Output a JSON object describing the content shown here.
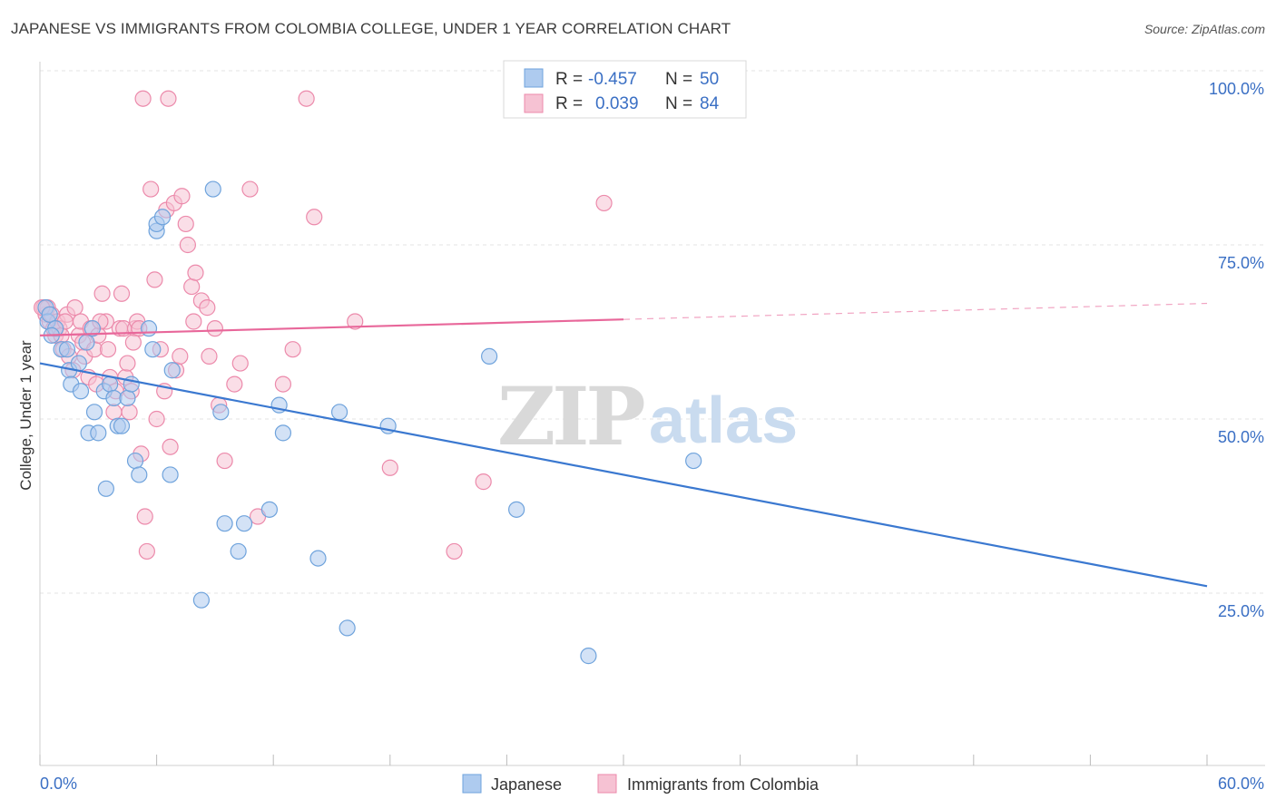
{
  "title": "JAPANESE VS IMMIGRANTS FROM COLOMBIA COLLEGE, UNDER 1 YEAR CORRELATION CHART",
  "source": "Source: ZipAtlas.com",
  "watermark": {
    "zip": "ZIP",
    "atlas": "atlas"
  },
  "colors": {
    "blue": "#6fa3dc",
    "blue_fill": "#aecbef",
    "pink": "#ec8aab",
    "pink_fill": "#f6c2d3",
    "blue_line": "#3a78d0",
    "pink_line": "#e8679a",
    "tick": "#3a6fc4"
  },
  "legend": {
    "rows": [
      {
        "r_label": "R = ",
        "r_value": "-0.457",
        "n_label": "N = ",
        "n_value": "50"
      },
      {
        "r_label": "R = ",
        "r_value": "0.039",
        "n_label": "N = ",
        "n_value": "84"
      }
    ]
  },
  "bottom_legend": [
    "Japanese",
    "Immigrants from Colombia"
  ],
  "chart_data": {
    "type": "scatter",
    "title": "JAPANESE VS IMMIGRANTS FROM COLOMBIA COLLEGE, UNDER 1 YEAR CORRELATION CHART",
    "xlabel": "",
    "ylabel": "College, Under 1 year",
    "xlim": [
      0,
      60
    ],
    "ylim": [
      0,
      105
    ],
    "x_tick_labels": [
      "0.0%",
      "60.0%"
    ],
    "y_ticks": [
      25,
      50,
      75,
      100
    ],
    "y_tick_labels": [
      "25.0%",
      "50.0%",
      "75.0%",
      "100.0%"
    ],
    "grid": true,
    "legend_position": "top-center",
    "series": [
      {
        "name": "Japanese",
        "r": -0.457,
        "n": 50,
        "trend": {
          "x0": 0,
          "y0": 58,
          "x1": 60,
          "y1": 26
        },
        "points": [
          [
            0.3,
            66
          ],
          [
            0.4,
            64
          ],
          [
            0.5,
            65
          ],
          [
            0.8,
            63
          ],
          [
            1.1,
            60
          ],
          [
            1.4,
            60
          ],
          [
            1.5,
            57
          ],
          [
            1.6,
            55
          ],
          [
            2.0,
            58
          ],
          [
            2.1,
            54
          ],
          [
            2.4,
            61
          ],
          [
            2.5,
            48
          ],
          [
            2.7,
            63
          ],
          [
            2.8,
            51
          ],
          [
            3.0,
            48
          ],
          [
            3.3,
            54
          ],
          [
            3.4,
            40
          ],
          [
            3.6,
            55
          ],
          [
            3.8,
            53
          ],
          [
            4.0,
            49
          ],
          [
            4.2,
            49
          ],
          [
            4.5,
            53
          ],
          [
            4.7,
            55
          ],
          [
            4.9,
            44
          ],
          [
            5.1,
            42
          ],
          [
            5.6,
            63
          ],
          [
            5.8,
            60
          ],
          [
            6.0,
            77
          ],
          [
            6.0,
            78
          ],
          [
            6.3,
            79
          ],
          [
            6.7,
            42
          ],
          [
            6.8,
            57
          ],
          [
            8.3,
            24
          ],
          [
            8.9,
            83
          ],
          [
            9.3,
            51
          ],
          [
            9.5,
            35
          ],
          [
            10.2,
            31
          ],
          [
            10.5,
            35
          ],
          [
            11.8,
            37
          ],
          [
            12.3,
            52
          ],
          [
            12.5,
            48
          ],
          [
            14.3,
            30
          ],
          [
            15.4,
            51
          ],
          [
            15.8,
            20
          ],
          [
            17.9,
            49
          ],
          [
            23.1,
            59
          ],
          [
            24.5,
            37
          ],
          [
            28.2,
            16
          ],
          [
            33.6,
            44
          ],
          [
            0.6,
            62
          ]
        ]
      },
      {
        "name": "Immigrants from Colombia",
        "r": 0.039,
        "n": 84,
        "trend": {
          "x0": 0,
          "y0": 62,
          "x1": 30,
          "y1": 64.3,
          "dashed_to": {
            "x": 60,
            "y": 66.6
          }
        },
        "points": [
          [
            0.2,
            66
          ],
          [
            0.3,
            65
          ],
          [
            0.4,
            66
          ],
          [
            0.5,
            64
          ],
          [
            0.6,
            65
          ],
          [
            0.7,
            63
          ],
          [
            0.8,
            62
          ],
          [
            0.9,
            64
          ],
          [
            1.0,
            63
          ],
          [
            1.1,
            62
          ],
          [
            1.2,
            60
          ],
          [
            1.4,
            65
          ],
          [
            1.5,
            59
          ],
          [
            1.7,
            57
          ],
          [
            1.8,
            66
          ],
          [
            2.0,
            62
          ],
          [
            2.1,
            64
          ],
          [
            2.2,
            61
          ],
          [
            2.3,
            59
          ],
          [
            2.5,
            56
          ],
          [
            2.6,
            63
          ],
          [
            2.8,
            60
          ],
          [
            2.9,
            55
          ],
          [
            3.0,
            62
          ],
          [
            3.2,
            68
          ],
          [
            3.4,
            64
          ],
          [
            3.5,
            60
          ],
          [
            3.6,
            56
          ],
          [
            3.8,
            51
          ],
          [
            3.9,
            54
          ],
          [
            4.1,
            63
          ],
          [
            4.2,
            68
          ],
          [
            4.3,
            63
          ],
          [
            4.4,
            56
          ],
          [
            4.5,
            58
          ],
          [
            4.6,
            51
          ],
          [
            4.7,
            54
          ],
          [
            4.9,
            63
          ],
          [
            5.0,
            64
          ],
          [
            5.1,
            63
          ],
          [
            5.2,
            45
          ],
          [
            5.4,
            36
          ],
          [
            5.5,
            31
          ],
          [
            5.7,
            83
          ],
          [
            5.9,
            70
          ],
          [
            6.0,
            50
          ],
          [
            6.2,
            60
          ],
          [
            6.4,
            54
          ],
          [
            6.5,
            80
          ],
          [
            6.7,
            46
          ],
          [
            6.9,
            81
          ],
          [
            7.0,
            57
          ],
          [
            7.3,
            82
          ],
          [
            7.5,
            78
          ],
          [
            7.6,
            75
          ],
          [
            7.8,
            69
          ],
          [
            7.9,
            64
          ],
          [
            8.0,
            71
          ],
          [
            8.3,
            67
          ],
          [
            8.6,
            66
          ],
          [
            8.7,
            59
          ],
          [
            9.0,
            63
          ],
          [
            9.2,
            52
          ],
          [
            9.5,
            44
          ],
          [
            10.0,
            55
          ],
          [
            10.3,
            58
          ],
          [
            10.8,
            83
          ],
          [
            11.2,
            36
          ],
          [
            12.5,
            55
          ],
          [
            13.0,
            60
          ],
          [
            14.1,
            79
          ],
          [
            16.2,
            64
          ],
          [
            18.0,
            43
          ],
          [
            21.3,
            31
          ],
          [
            22.8,
            41
          ],
          [
            29.0,
            81
          ],
          [
            5.3,
            96
          ],
          [
            6.6,
            96
          ],
          [
            13.7,
            96
          ],
          [
            0.1,
            66
          ],
          [
            1.3,
            64
          ],
          [
            3.1,
            64
          ],
          [
            4.8,
            61
          ],
          [
            7.2,
            59
          ]
        ]
      }
    ]
  }
}
